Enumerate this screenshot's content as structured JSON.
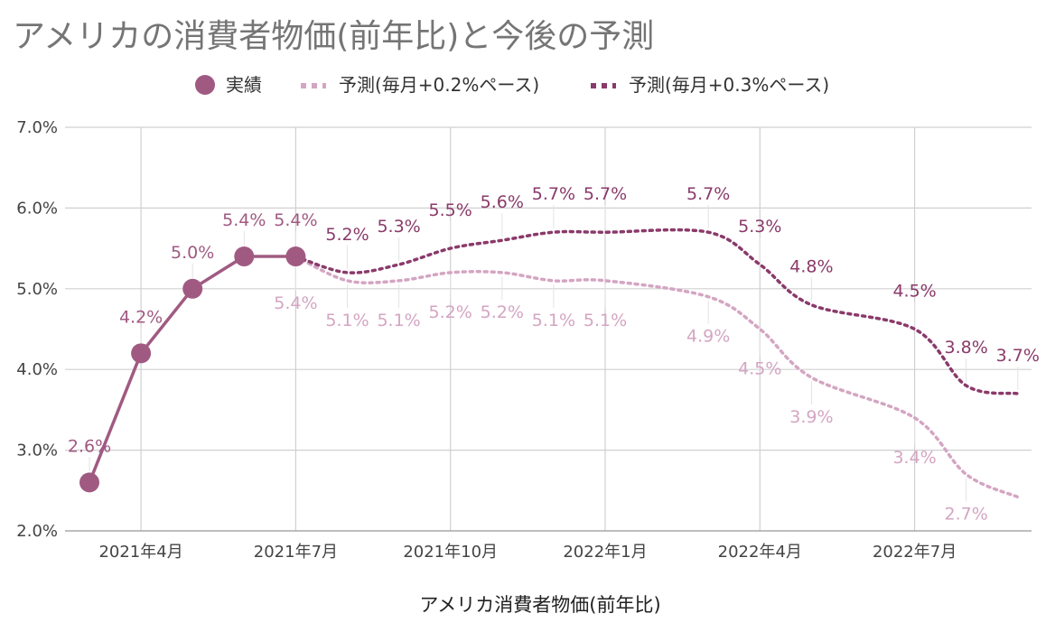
{
  "chart_data": {
    "type": "line",
    "title": "アメリカの消費者物価(前年比)と今後の予測",
    "xlabel": "アメリカ消費者物価(前年比)",
    "ylabel": "",
    "ylim": [
      0.02,
      0.07
    ],
    "yticks": [
      "2.0%",
      "3.0%",
      "4.0%",
      "5.0%",
      "6.0%",
      "7.0%"
    ],
    "xticks": [
      {
        "label": "2021年4月",
        "month": 1
      },
      {
        "label": "2021年7月",
        "month": 4
      },
      {
        "label": "2021年10月",
        "month": 7
      },
      {
        "label": "2022年1月",
        "month": 10
      },
      {
        "label": "2022年4月",
        "month": 13
      },
      {
        "label": "2022年7月",
        "month": 16
      }
    ],
    "legend_position": "top",
    "grid": true,
    "series": [
      {
        "name": "実績",
        "style": "solid-markers",
        "color": "#a05a82",
        "x": [
          0,
          1,
          2,
          3,
          4
        ],
        "values": [
          0.026,
          0.042,
          0.05,
          0.054,
          0.054
        ],
        "labels": [
          "2.6%",
          "4.2%",
          "5.0%",
          "5.4%",
          "5.4%"
        ]
      },
      {
        "name": "予測(毎月+0.2%ペース)",
        "style": "dotted",
        "color": "#d4a5c2",
        "x": [
          4,
          5,
          6,
          7,
          8,
          9,
          10,
          12,
          13,
          14,
          16,
          17,
          18
        ],
        "values": [
          0.054,
          0.051,
          0.051,
          0.052,
          0.052,
          0.051,
          0.051,
          0.049,
          0.045,
          0.039,
          0.034,
          0.027,
          0.0242
        ],
        "labels": [
          "5.4%",
          "5.1%",
          "5.1%",
          "5.2%",
          "5.2%",
          "5.1%",
          "5.1%",
          "4.9%",
          "4.5%",
          "3.9%",
          "3.4%",
          "2.7%",
          ""
        ]
      },
      {
        "name": "予測(毎月+0.3%ペース)",
        "style": "dotted",
        "color": "#8a3a6a",
        "x": [
          4,
          5,
          6,
          7,
          8,
          9,
          10,
          12,
          13,
          14,
          16,
          17,
          18
        ],
        "values": [
          0.054,
          0.052,
          0.053,
          0.055,
          0.056,
          0.057,
          0.057,
          0.057,
          0.053,
          0.048,
          0.045,
          0.038,
          0.037
        ],
        "labels": [
          "",
          "5.2%",
          "5.3%",
          "5.5%",
          "5.6%",
          "5.7%",
          "5.7%",
          "5.7%",
          "5.3%",
          "4.8%",
          "4.5%",
          "3.8%",
          "3.7%"
        ]
      }
    ]
  }
}
